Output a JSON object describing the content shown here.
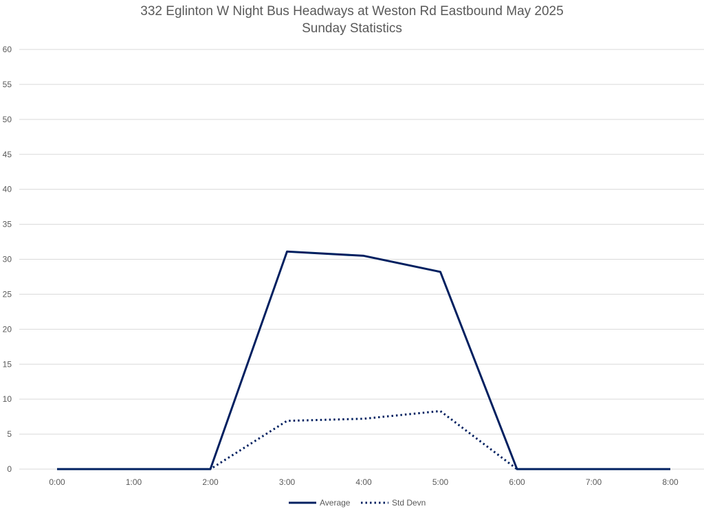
{
  "chart_data": {
    "type": "line",
    "title": "332 Eglinton W Night Bus Headways at Weston Rd Eastbound May 2025",
    "subtitle": "Sunday Statistics",
    "categories": [
      "0:00",
      "1:00",
      "2:00",
      "3:00",
      "4:00",
      "5:00",
      "6:00",
      "7:00",
      "8:00"
    ],
    "series": [
      {
        "name": "Average",
        "values": [
          0,
          0,
          0,
          31.1,
          30.5,
          28.2,
          0,
          0,
          0
        ],
        "color": "#002060",
        "style": "solid"
      },
      {
        "name": "Std Devn",
        "values": [
          0,
          0,
          0,
          6.9,
          7.2,
          8.3,
          0,
          0,
          0
        ],
        "color": "#002060",
        "style": "dotted"
      }
    ],
    "ylim": [
      0,
      60
    ],
    "yticks": [
      0,
      5,
      10,
      15,
      20,
      25,
      30,
      35,
      40,
      45,
      50,
      55,
      60
    ],
    "grid": true,
    "legend": "bottom",
    "colors": {
      "grid": "#d9d9d9",
      "text": "#595959"
    }
  }
}
